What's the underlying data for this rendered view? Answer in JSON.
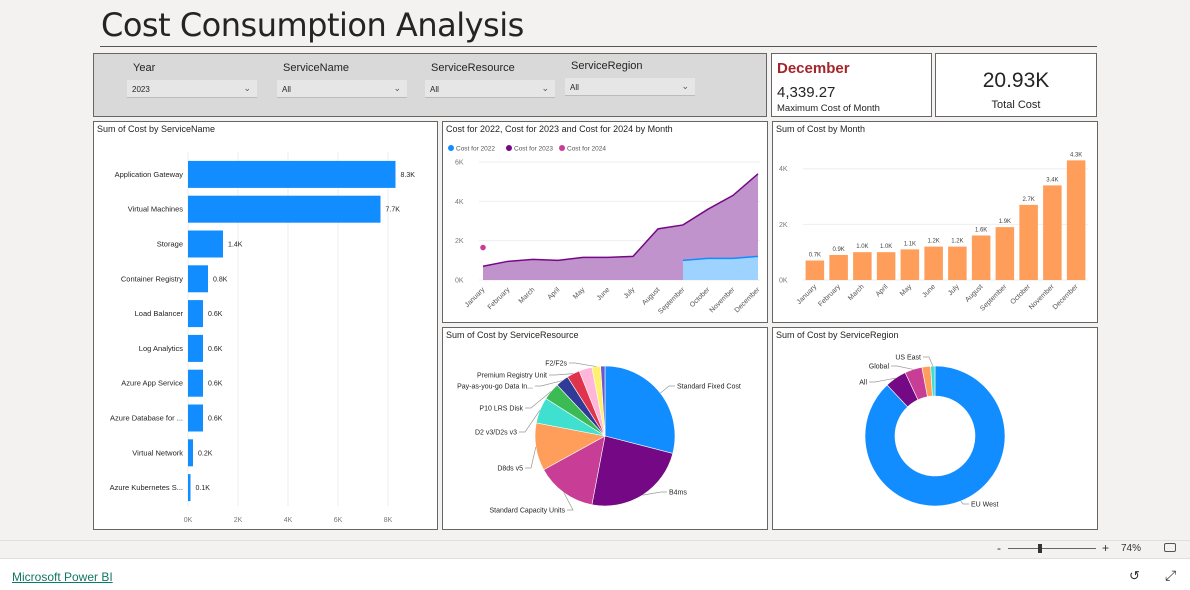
{
  "page_title": "Cost Consumption Analysis",
  "slicers": [
    {
      "label": "Year",
      "value": "2023"
    },
    {
      "label": "ServiceName",
      "value": "All"
    },
    {
      "label": "ServiceResource",
      "value": "All"
    },
    {
      "label": "ServiceRegion",
      "value": "All"
    }
  ],
  "card_month": {
    "month": "December",
    "value": "4,339.27",
    "caption": "Maximum Cost of Month"
  },
  "card_total": {
    "value": "20.93K",
    "caption": "Total Cost"
  },
  "colors": {
    "blue": "#118dff",
    "purple": "#750985",
    "pink": "#c83d95",
    "orange": "#ff9e5a",
    "maroon": "#a4262c"
  },
  "statusbar": {
    "zoom_minus": "-",
    "zoom_plus": "+",
    "zoom": "74%"
  },
  "footer": {
    "brand": "Microsoft Power BI"
  },
  "chart_data": [
    {
      "type": "bar",
      "orientation": "horizontal",
      "title": "Sum of Cost by ServiceName",
      "categories": [
        "Application Gateway",
        "Virtual Machines",
        "Storage",
        "Container Registry",
        "Load Balancer",
        "Log Analytics",
        "Azure App Service",
        "Azure Database for ...",
        "Virtual Network",
        "Azure Kubernetes S..."
      ],
      "values": [
        8300,
        7700,
        1400,
        800,
        600,
        600,
        600,
        600,
        200,
        100
      ],
      "data_labels": [
        "8.3K",
        "7.7K",
        "1.4K",
        "0.8K",
        "0.6K",
        "0.6K",
        "0.6K",
        "0.6K",
        "0.2K",
        "0.1K"
      ],
      "xticks": [
        "0K",
        "2K",
        "4K",
        "6K",
        "8K"
      ],
      "xlim": [
        0,
        8800
      ]
    },
    {
      "type": "area",
      "title": "Cost for 2022, Cost for 2023 and Cost for 2024 by Month",
      "categories": [
        "January",
        "February",
        "March",
        "April",
        "May",
        "June",
        "July",
        "August",
        "September",
        "October",
        "November",
        "December"
      ],
      "series": [
        {
          "name": "Cost for 2022",
          "values": [
            null,
            null,
            null,
            null,
            null,
            null,
            null,
            null,
            1000,
            1100,
            1100,
            1200
          ]
        },
        {
          "name": "Cost for 2023",
          "values": [
            700,
            950,
            1050,
            1000,
            1150,
            1150,
            1200,
            2600,
            2800,
            3600,
            4300,
            5400
          ]
        },
        {
          "name": "Cost for 2024",
          "values": [
            1650,
            null,
            null,
            null,
            null,
            null,
            null,
            null,
            null,
            null,
            null,
            null
          ]
        }
      ],
      "yticks": [
        "0K",
        "2K",
        "4K",
        "6K"
      ],
      "ylim": [
        0,
        6000
      ]
    },
    {
      "type": "bar",
      "title": "Sum of Cost by Month",
      "categories": [
        "January",
        "February",
        "March",
        "April",
        "May",
        "June",
        "July",
        "August",
        "September",
        "October",
        "November",
        "December"
      ],
      "values": [
        700,
        900,
        1000,
        1000,
        1100,
        1200,
        1200,
        1600,
        1900,
        2700,
        3400,
        4300
      ],
      "data_labels": [
        "0.7K",
        "0.9K",
        "1.0K",
        "1.0K",
        "1.1K",
        "1.2K",
        "1.2K",
        "1.6K",
        "1.9K",
        "2.7K",
        "3.4K",
        "4.3K"
      ],
      "yticks": [
        "0K",
        "2K",
        "4K"
      ],
      "ylim": [
        0,
        4600
      ]
    },
    {
      "type": "pie",
      "title": "Sum of Cost by ServiceResource",
      "slices": [
        {
          "label": "Standard Fixed Cost",
          "value": 29,
          "color": "#118dff"
        },
        {
          "label": "B4ms",
          "value": 24,
          "color": "#750985"
        },
        {
          "label": "Standard Capacity Units",
          "value": 14,
          "color": "#c83d95"
        },
        {
          "label": "D8ds v5",
          "value": 11,
          "color": "#ff9e5a"
        },
        {
          "label": "D2 v3/D2s v3",
          "value": 6,
          "color": "#40e0d0"
        },
        {
          "label": "P10 LRS Disk",
          "value": 4,
          "color": "#3cba54"
        },
        {
          "label": "Pay-as-you-go Data In...",
          "value": 3,
          "color": "#2f3b96"
        },
        {
          "label": "Premium Registry Unit",
          "value": 3,
          "color": "#e0344c"
        },
        {
          "label": "",
          "value": 3,
          "color": "#ffb6d9"
        },
        {
          "label": "F2/F2s",
          "value": 2,
          "color": "#fff06e"
        },
        {
          "label": "",
          "value": 1,
          "color": "#6b57c9"
        }
      ]
    },
    {
      "type": "pie",
      "donut": true,
      "title": "Sum of Cost by ServiceRegion",
      "slices": [
        {
          "label": "EU West",
          "value": 88,
          "color": "#118dff"
        },
        {
          "label": "All",
          "value": 5,
          "color": "#750985"
        },
        {
          "label": "Global",
          "value": 4,
          "color": "#c83d95"
        },
        {
          "label": "",
          "value": 2,
          "color": "#ff9e5a"
        },
        {
          "label": "US East",
          "value": 1,
          "color": "#40e0d0"
        }
      ]
    }
  ]
}
